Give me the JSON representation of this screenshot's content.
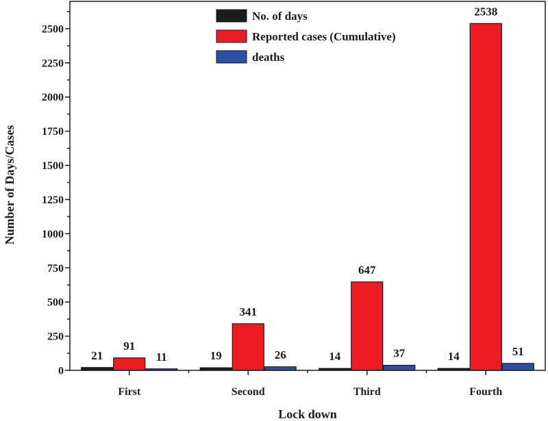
{
  "chart_data": {
    "type": "bar",
    "title": "",
    "xlabel": "Lock down",
    "ylabel": "Number of Days/Cases",
    "categories": [
      "First",
      "Second",
      "Third",
      "Fourth"
    ],
    "series": [
      {
        "name": "No. of days",
        "values": [
          21,
          19,
          14,
          14
        ],
        "color": "#1c1c1c"
      },
      {
        "name": "Reported cases (Cumulative)",
        "values": [
          91,
          341,
          647,
          2538
        ],
        "color": "#ed1c24"
      },
      {
        "name": "deaths",
        "values": [
          11,
          26,
          37,
          51
        ],
        "color": "#2e4ea8"
      }
    ],
    "ylim": [
      0,
      2700
    ],
    "yticks": [
      0,
      250,
      500,
      750,
      1000,
      1250,
      1500,
      1750,
      2000,
      2250,
      2500
    ],
    "grid": false,
    "legend_position": "top-center"
  }
}
